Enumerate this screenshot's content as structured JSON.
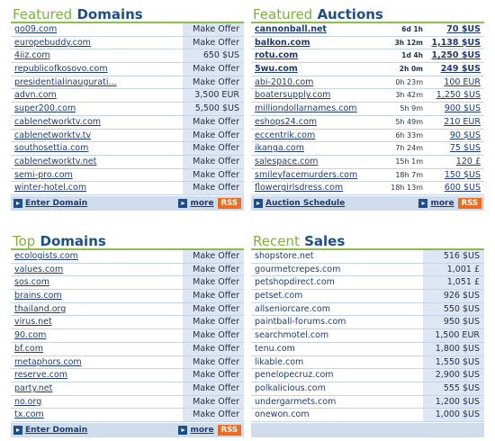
{
  "featured_domains": {
    "title_a": "Featured",
    "title_b": "Domains",
    "rows": [
      {
        "name": "go09.com",
        "value": "Make Offer"
      },
      {
        "name": "europebuddy.com",
        "value": "Make Offer"
      },
      {
        "name": "4iiz.com",
        "value": "650 $US"
      },
      {
        "name": "republicofkosovo.com",
        "value": "Make Offer"
      },
      {
        "name": "presidentialinaugurati...",
        "value": "Make Offer"
      },
      {
        "name": "advn.com",
        "value": "3,500 EUR"
      },
      {
        "name": "super200.com",
        "value": "5,500 $US"
      },
      {
        "name": "cablenetworktv.com",
        "value": "Make Offer"
      },
      {
        "name": "cablenetworktv.tv",
        "value": "Make Offer"
      },
      {
        "name": "southosettia.com",
        "value": "Make Offer"
      },
      {
        "name": "cablenetworktv.net",
        "value": "Make Offer"
      },
      {
        "name": "semi-pro.com",
        "value": "Make Offer"
      },
      {
        "name": "winter-hotel.com",
        "value": "Make Offer"
      }
    ],
    "footer_link": "Enter Domain",
    "more_label": "more",
    "rss_label": "RSS"
  },
  "featured_auctions": {
    "title_a": "Featured",
    "title_b": "Auctions",
    "rows": [
      {
        "name": "cannonball.net",
        "time": "6d 1h",
        "bid": "70 $US",
        "bold": true
      },
      {
        "name": "balkon.com",
        "time": "3h 12m",
        "bid": "1,138 $US",
        "bold": true
      },
      {
        "name": "rotu.com",
        "time": "1d 4h",
        "bid": "1,250 $US",
        "bold": true
      },
      {
        "name": "5wu.com",
        "time": "2h 0m",
        "bid": "249 $US",
        "bold": true
      },
      {
        "name": "abi-2010.com",
        "time": "0h 23m",
        "bid": "100 EUR",
        "bold": false
      },
      {
        "name": "boatersupply.com",
        "time": "3h 42m",
        "bid": "1,250 $US",
        "bold": false
      },
      {
        "name": "milliondollarnames.com",
        "time": "5h 9m",
        "bid": "900 $US",
        "bold": false
      },
      {
        "name": "eshops24.com",
        "time": "5h 49m",
        "bid": "210 EUR",
        "bold": false
      },
      {
        "name": "eccentrik.com",
        "time": "6h 33m",
        "bid": "90 $US",
        "bold": false
      },
      {
        "name": "ikanga.com",
        "time": "7h 24m",
        "bid": "75 $US",
        "bold": false
      },
      {
        "name": "salespace.com",
        "time": "15h 1m",
        "bid": "120 £",
        "bold": false
      },
      {
        "name": "smileyfacemurders.com",
        "time": "18h 7m",
        "bid": "150 $US",
        "bold": false
      },
      {
        "name": "flowergirlsdress.com",
        "time": "18h 13m",
        "bid": "600 $US",
        "bold": false
      }
    ],
    "footer_link": "Auction Schedule",
    "more_label": "more",
    "rss_label": "RSS"
  },
  "top_domains": {
    "title_a": "Top",
    "title_b": "Domains",
    "rows": [
      {
        "name": "ecologists.com",
        "value": "Make Offer"
      },
      {
        "name": "values.com",
        "value": "Make Offer"
      },
      {
        "name": "sos.com",
        "value": "Make Offer"
      },
      {
        "name": "brains.com",
        "value": "Make Offer"
      },
      {
        "name": "thailand.org",
        "value": "Make Offer"
      },
      {
        "name": "virus.net",
        "value": "Make Offer"
      },
      {
        "name": "90.com",
        "value": "Make Offer"
      },
      {
        "name": "bf.com",
        "value": "Make Offer"
      },
      {
        "name": "metaphors.com",
        "value": "Make Offer"
      },
      {
        "name": "reserve.com",
        "value": "Make Offer"
      },
      {
        "name": "party.net",
        "value": "Make Offer"
      },
      {
        "name": "no.org",
        "value": "Make Offer"
      },
      {
        "name": "tx.com",
        "value": "Make Offer"
      }
    ],
    "footer_link": "Enter Domain",
    "more_label": "more",
    "rss_label": "RSS"
  },
  "recent_sales": {
    "title_a": "Recent",
    "title_b": "Sales",
    "rows": [
      {
        "name": "shopstore.net",
        "value": "516 $US"
      },
      {
        "name": "gourmetcrepes.com",
        "value": "1,001 £"
      },
      {
        "name": "petshopdirect.com",
        "value": "1,051 £"
      },
      {
        "name": "petset.com",
        "value": "926 $US"
      },
      {
        "name": "allseniorcare.com",
        "value": "550 $US"
      },
      {
        "name": "paintball-forums.com",
        "value": "950 $US"
      },
      {
        "name": "searchmotel.com",
        "value": "1,500 EUR"
      },
      {
        "name": "tenu.com",
        "value": "1,800 $US"
      },
      {
        "name": "likable.com",
        "value": "1,550 $US"
      },
      {
        "name": "penelopecruz.com",
        "value": "2,900 $US"
      },
      {
        "name": "polkalicious.com",
        "value": "555 $US"
      },
      {
        "name": "undergarmets.com",
        "value": "1,200 $US"
      },
      {
        "name": "onewon.com",
        "value": "1,000 $US"
      }
    ]
  },
  "colors": {
    "title_green": "#7ab23a",
    "title_blue": "#1f4e8c",
    "value_bg": "#dde6f2",
    "footer_bg": "#cfdcec",
    "rss_orange": "#f26b1d"
  }
}
